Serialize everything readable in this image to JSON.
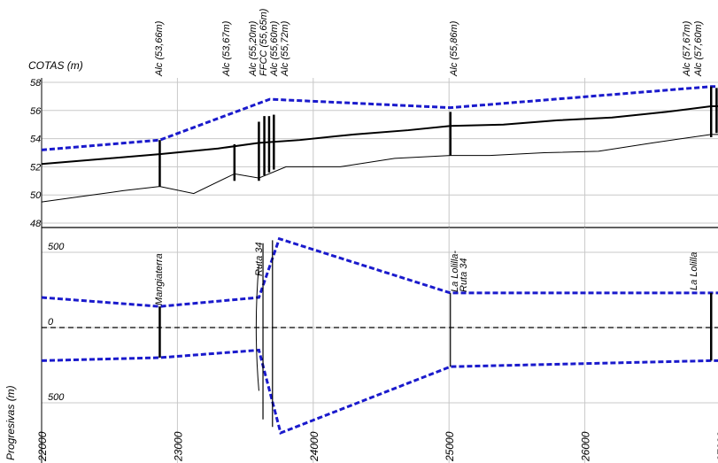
{
  "chart_data": [
    {
      "type": "line",
      "title": "",
      "ylabel": "COTAS (m)",
      "ylim": [
        48,
        58
      ],
      "yticks": [
        48,
        50,
        52,
        54,
        56,
        58
      ],
      "xlim": [
        22000,
        27000
      ],
      "series": [
        {
          "name": "",
          "style": "dashed-blue",
          "color": "#1a1acc",
          "x": [
            22000,
            22870,
            23680,
            25010,
            26930,
            27000
          ],
          "y": [
            53.2,
            53.9,
            56.8,
            56.2,
            57.7,
            57.7
          ]
        },
        {
          "name": "",
          "style": "thick-black",
          "color": "#000000",
          "x": [
            22000,
            22500,
            22870,
            23300,
            23600,
            23900,
            24300,
            24700,
            25010,
            25400,
            25800,
            26200,
            26600,
            26930,
            27000
          ],
          "y": [
            52.2,
            52.6,
            52.9,
            53.3,
            53.7,
            53.9,
            54.3,
            54.6,
            54.9,
            55.0,
            55.3,
            55.5,
            55.9,
            56.3,
            56.3
          ]
        },
        {
          "name": "",
          "style": "thin-black",
          "color": "#000000",
          "x": [
            22000,
            22300,
            22600,
            22870,
            23120,
            23420,
            23600,
            23800,
            24200,
            24600,
            25010,
            25300,
            25700,
            26100,
            26500,
            26930,
            27000
          ],
          "y": [
            49.5,
            49.9,
            50.3,
            50.6,
            50.1,
            51.5,
            51.2,
            52.0,
            52.0,
            52.6,
            52.8,
            52.8,
            53.0,
            53.1,
            53.7,
            54.3,
            54.3
          ]
        }
      ],
      "structures": [
        {
          "x": 22870,
          "bottom": 50.6,
          "top": 53.9,
          "label": "Alc (53,66m)"
        },
        {
          "x": 23420,
          "bottom": 51.0,
          "top": 53.6,
          "label": "Alc (53,67m)"
        },
        {
          "x": 23600,
          "bottom": 51.0,
          "top": 55.2,
          "label": "Alc (55,20m)"
        },
        {
          "x": 23640,
          "bottom": 51.4,
          "top": 55.6,
          "label": "FFCC (55,65m)"
        },
        {
          "x": 23675,
          "bottom": 51.6,
          "top": 55.6,
          "label": "Alc (55,60m)"
        },
        {
          "x": 23710,
          "bottom": 51.8,
          "top": 55.7,
          "label": "Alc (55,72m)"
        },
        {
          "x": 25010,
          "bottom": 52.8,
          "top": 55.9,
          "label": "Alc (55,86m)"
        },
        {
          "x": 26930,
          "bottom": 54.1,
          "top": 57.7,
          "label": "Alc (57,67m)"
        },
        {
          "x": 26970,
          "bottom": 54.4,
          "top": 57.6,
          "label": "Alc (57,60m)"
        }
      ]
    },
    {
      "type": "line",
      "title": "",
      "ylabel": "",
      "xlabel": "Progresivas (m)",
      "xlim": [
        22000,
        27000
      ],
      "xticks": [
        22000,
        23000,
        24000,
        25000,
        26000,
        27000
      ],
      "ylim": [
        -640,
        660
      ],
      "ytick_labels": [
        {
          "value": 500,
          "label": "500"
        },
        {
          "value": 0,
          "label": "0"
        },
        {
          "value": -500,
          "label": "500"
        }
      ],
      "series": [
        {
          "name": "",
          "style": "dashed-blue",
          "color": "#1a1acc",
          "x": [
            22000,
            22870,
            23600,
            23750,
            25010,
            26930,
            27000
          ],
          "y": [
            200,
            140,
            200,
            590,
            230,
            230,
            230
          ]
        },
        {
          "name": "",
          "style": "dashed-blue",
          "color": "#1a1acc",
          "x": [
            22000,
            22870,
            23600,
            23760,
            25010,
            26930,
            27000
          ],
          "y": [
            -220,
            -200,
            -150,
            -700,
            -260,
            -220,
            -220
          ]
        },
        {
          "name": "",
          "style": "dashed-black",
          "color": "#000000",
          "x": [
            22000,
            27000
          ],
          "y": [
            0,
            0
          ]
        }
      ],
      "structures": [
        {
          "x": 22870,
          "bottom": -200,
          "top": 140,
          "label": "Mangiaterra",
          "width": "thick"
        },
        {
          "x": 23630,
          "bottom": -610,
          "top": 560,
          "label": "Ruta 34",
          "width": "thin"
        },
        {
          "x": 23700,
          "bottom": -660,
          "top": 580,
          "label": "",
          "width": "thin"
        },
        {
          "x": 25010,
          "bottom": -260,
          "top": 230,
          "label": "La Lolilla-\nRuta 34",
          "width": "thin"
        },
        {
          "x": 26930,
          "bottom": -220,
          "top": 230,
          "label": "La Lolilla",
          "width": "thick"
        }
      ]
    }
  ]
}
